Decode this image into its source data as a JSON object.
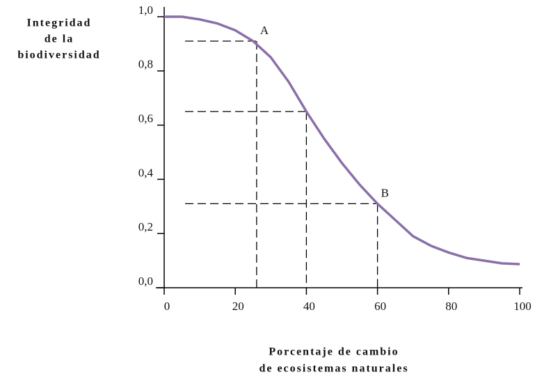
{
  "chart_data": {
    "type": "line",
    "ylabel": [
      "Integridad",
      "de la",
      "biodiversidad"
    ],
    "xlabel": [
      "Porcentaje de cambio",
      "de ecosistemas naturales"
    ],
    "xlim": [
      0,
      100
    ],
    "ylim": [
      0,
      1
    ],
    "xticks": [
      0,
      20,
      40,
      60,
      80,
      100
    ],
    "yticks": [
      {
        "value": 0,
        "label": "0,0"
      },
      {
        "value": 0.2,
        "label": "0,2"
      },
      {
        "value": 0.4,
        "label": "0,4"
      },
      {
        "value": 0.6,
        "label": "0,6"
      },
      {
        "value": 0.8,
        "label": "0,8"
      },
      {
        "value": 1.0,
        "label": "1,0"
      }
    ],
    "series": [
      {
        "color": "#8a6fa8",
        "x": [
          0,
          5,
          10,
          15,
          20,
          25,
          30,
          35,
          40,
          45,
          50,
          55,
          60,
          65,
          70,
          75,
          80,
          85,
          90,
          95,
          100
        ],
        "values": [
          1.0,
          1.0,
          0.99,
          0.975,
          0.95,
          0.91,
          0.85,
          0.76,
          0.65,
          0.55,
          0.46,
          0.38,
          0.31,
          0.25,
          0.19,
          0.155,
          0.13,
          0.11,
          0.1,
          0.09,
          0.087
        ]
      }
    ],
    "guides": [
      {
        "x": 26,
        "y": 0.91
      },
      {
        "x": 40,
        "y": 0.65
      },
      {
        "x": 60,
        "y": 0.31
      }
    ],
    "annotations": [
      {
        "text": "A",
        "x": 26,
        "y": 0.91
      },
      {
        "text": "B",
        "x": 60,
        "y": 0.31
      }
    ]
  }
}
